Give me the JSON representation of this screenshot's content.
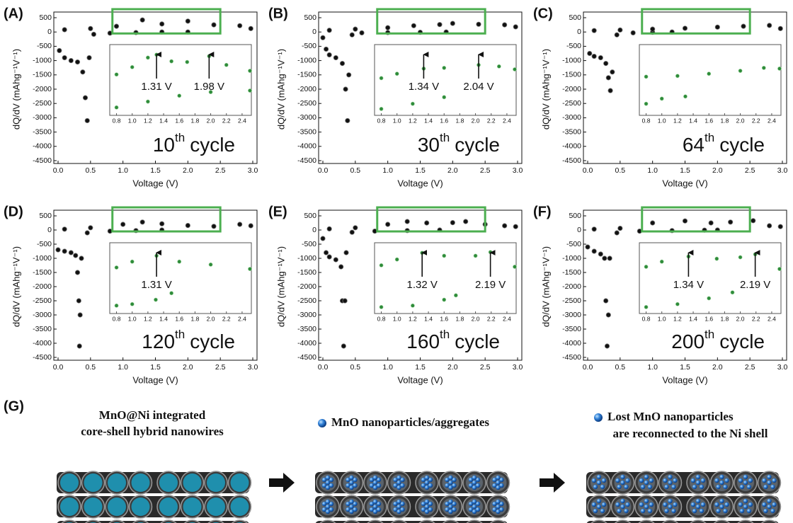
{
  "chart_data": [
    {
      "type": "scatter",
      "panel": "(A)",
      "xlabel": "Voltage (V)",
      "ylabel": "dQ/dV (mAhg⁻¹V⁻¹)",
      "cycle_number": "10",
      "cycle_suffix": "th",
      "cycle_word": "cycle",
      "xlim": [
        0,
        3
      ],
      "ylim": [
        -4500,
        500
      ],
      "xticks": [
        {
          "value": 0,
          "label": "0.0"
        },
        0.5,
        {
          "value": 1,
          "label": "1.0"
        },
        1.5,
        {
          "value": 2,
          "label": "2.0"
        },
        2.5,
        {
          "value": 3,
          "label": "3.0"
        }
      ],
      "yticks": [
        500,
        0,
        -500,
        -1000,
        -1500,
        -2000,
        -2500,
        -3000,
        -3500,
        -4000,
        -4500
      ],
      "series": [
        {
          "color": "#111111",
          "x": [
            0.02,
            0.1,
            0.2,
            0.3,
            0.38,
            0.42,
            0.45,
            0.48,
            0.55,
            0.8,
            1.2,
            1.6,
            2.0
          ],
          "values": [
            -650,
            -900,
            -1000,
            -1050,
            -1400,
            -2300,
            -3100,
            -900,
            -80,
            -40,
            -20,
            0,
            0
          ]
        },
        {
          "color": "#111111",
          "x": [
            0.1,
            0.5,
            0.9,
            1.3,
            1.6,
            2.0,
            2.4,
            2.8,
            2.97
          ],
          "values": [
            80,
            120,
            200,
            420,
            280,
            380,
            250,
            220,
            120
          ]
        }
      ],
      "inset": {
        "xlim": [
          0.75,
          2.5
        ],
        "ylim": [
          -250,
          600
        ],
        "xticks": [
          0.8,
          {
            "value": 1,
            "label": "1.0"
          },
          1.2,
          1.4,
          1.6,
          1.8,
          {
            "value": 2,
            "label": "2.0"
          },
          2.2,
          2.4
        ],
        "series": [
          {
            "color": "#2e8b3a",
            "x": [
              0.8,
              1.0,
              1.2,
              1.31,
              1.5,
              1.7,
              1.98,
              2.2,
              2.5
            ],
            "values": [
              250,
              350,
              480,
              520,
              430,
              420,
              500,
              380,
              300
            ]
          },
          {
            "color": "#2e8b3a",
            "x": [
              0.8,
              1.2,
              1.6,
              2.0,
              2.5
            ],
            "values": [
              -200,
              -120,
              -40,
              10,
              30
            ]
          }
        ],
        "peaks": [
          {
            "x": 1.31,
            "label": "1.31 V"
          },
          {
            "x": 1.98,
            "label": "1.98 V"
          }
        ]
      }
    },
    {
      "type": "scatter",
      "panel": "(B)",
      "xlabel": "Voltage (V)",
      "ylabel": "dQ/dV (mAhg⁻¹V⁻¹)",
      "cycle_number": "30",
      "cycle_suffix": "th",
      "cycle_word": "cycle",
      "xlim": [
        0,
        3
      ],
      "ylim": [
        -4500,
        500
      ],
      "xticks": [
        {
          "value": 0,
          "label": "0.0"
        },
        0.5,
        {
          "value": 1,
          "label": "1.0"
        },
        1.5,
        {
          "value": 2,
          "label": "2.0"
        },
        2.5,
        {
          "value": 3,
          "label": "3.0"
        }
      ],
      "yticks": [
        500,
        0,
        -500,
        -1000,
        -1500,
        -2000,
        -2500,
        -3000,
        -3500,
        -4000,
        -4500
      ],
      "series": [
        {
          "color": "#111111",
          "x": [
            0.0,
            0.05,
            0.1,
            0.2,
            0.3,
            0.35,
            0.38,
            0.4,
            0.45,
            0.6,
            1.0,
            1.5,
            1.9
          ],
          "values": [
            -200,
            -600,
            -800,
            -900,
            -1100,
            -2000,
            -3100,
            -1500,
            -100,
            -30,
            -20,
            -10,
            0
          ]
        },
        {
          "color": "#111111",
          "x": [
            0.1,
            0.5,
            1.0,
            1.4,
            1.8,
            2.0,
            2.4,
            2.8,
            2.97
          ],
          "values": [
            60,
            100,
            150,
            220,
            260,
            300,
            270,
            250,
            180
          ]
        }
      ],
      "inset": {
        "xlim": [
          0.75,
          2.5
        ],
        "ylim": [
          -250,
          600
        ],
        "xticks": [
          0.8,
          {
            "value": 1,
            "label": "1.0"
          },
          1.2,
          1.4,
          1.6,
          1.8,
          {
            "value": 2,
            "label": "2.0"
          },
          2.2,
          2.4
        ],
        "series": [
          {
            "color": "#2e8b3a",
            "x": [
              0.8,
              1.0,
              1.34,
              1.6,
              2.04,
              2.3,
              2.5
            ],
            "values": [
              200,
              260,
              330,
              340,
              380,
              360,
              320
            ]
          },
          {
            "color": "#2e8b3a",
            "x": [
              0.8,
              1.2,
              1.6
            ],
            "values": [
              -220,
              -150,
              -60
            ]
          }
        ],
        "peaks": [
          {
            "x": 1.34,
            "label": "1.34 V"
          },
          {
            "x": 2.04,
            "label": "2.04 V"
          }
        ]
      }
    },
    {
      "type": "scatter",
      "panel": "(C)",
      "xlabel": "Voltage (V)",
      "ylabel": "dQ/dV (mAhg⁻¹V⁻¹)",
      "cycle_number": "64",
      "cycle_suffix": "th",
      "cycle_word": "cycle",
      "xlim": [
        0,
        3
      ],
      "ylim": [
        -4500,
        500
      ],
      "xticks": [
        {
          "value": 0,
          "label": "0.0"
        },
        0.5,
        {
          "value": 1,
          "label": "1.0"
        },
        1.5,
        {
          "value": 2,
          "label": "2.0"
        },
        2.5,
        {
          "value": 3,
          "label": "3.0"
        }
      ],
      "yticks": [
        500,
        0,
        -500,
        -1000,
        -1500,
        -2000,
        -2500,
        -3000,
        -3500,
        -4000,
        -4500
      ],
      "series": [
        {
          "color": "#111111",
          "x": [
            0.03,
            0.1,
            0.2,
            0.28,
            0.32,
            0.35,
            0.38,
            0.45,
            0.7,
            1.0,
            1.3
          ],
          "values": [
            -750,
            -850,
            -900,
            -1100,
            -1600,
            -2050,
            -1400,
            -100,
            -30,
            -10,
            0
          ]
        },
        {
          "color": "#111111",
          "x": [
            0.1,
            0.5,
            1.0,
            1.5,
            2.0,
            2.4,
            2.8,
            2.97
          ],
          "values": [
            50,
            70,
            100,
            130,
            170,
            200,
            230,
            120
          ]
        }
      ],
      "inset": {
        "xlim": [
          0.75,
          2.5
        ],
        "ylim": [
          -250,
          600
        ],
        "xticks": [
          0.8,
          {
            "value": 1,
            "label": "1.0"
          },
          1.2,
          1.4,
          1.6,
          1.8,
          {
            "value": 2,
            "label": "2.0"
          },
          2.2,
          2.4
        ],
        "series": [
          {
            "color": "#2e8b3a",
            "x": [
              0.8,
              1.2,
              1.6,
              2.0,
              2.3,
              2.5
            ],
            "values": [
              220,
              230,
              260,
              300,
              340,
              330
            ]
          },
          {
            "color": "#2e8b3a",
            "x": [
              0.8,
              1.0,
              1.3
            ],
            "values": [
              -150,
              -80,
              -50
            ]
          }
        ],
        "peaks": []
      }
    },
    {
      "type": "scatter",
      "panel": "(D)",
      "xlabel": "Voltage (V)",
      "ylabel": "dQ/dV (mAhg⁻¹V⁻¹)",
      "cycle_number": "120",
      "cycle_suffix": "th",
      "cycle_word": "cycle",
      "xlim": [
        0,
        3
      ],
      "ylim": [
        -4500,
        500
      ],
      "xticks": [
        {
          "value": 0,
          "label": "0.0"
        },
        0.5,
        {
          "value": 1,
          "label": "1.0"
        },
        1.5,
        {
          "value": 2,
          "label": "2.0"
        },
        2.5,
        {
          "value": 3,
          "label": "3.0"
        }
      ],
      "yticks": [
        500,
        0,
        -500,
        -1000,
        -1500,
        -2000,
        -2500,
        -3000,
        -3500,
        -4000,
        -4500
      ],
      "series": [
        {
          "color": "#111111",
          "x": [
            0.0,
            0.1,
            0.2,
            0.27,
            0.3,
            0.32,
            0.33,
            0.34,
            0.36,
            0.45,
            0.8,
            1.2,
            1.6
          ],
          "values": [
            -700,
            -750,
            -800,
            -900,
            -1500,
            -2500,
            -4100,
            -3000,
            -1000,
            -100,
            -40,
            -20,
            0
          ]
        },
        {
          "color": "#111111",
          "x": [
            0.1,
            0.5,
            1.0,
            1.3,
            1.6,
            2.0,
            2.4,
            2.8,
            2.97
          ],
          "values": [
            30,
            80,
            200,
            280,
            220,
            160,
            130,
            200,
            150
          ]
        }
      ],
      "inset": {
        "xlim": [
          0.75,
          2.5
        ],
        "ylim": [
          -250,
          600
        ],
        "xticks": [
          0.8,
          {
            "value": 1,
            "label": "1.0"
          },
          1.2,
          1.4,
          1.6,
          1.8,
          {
            "value": 2,
            "label": "2.0"
          },
          2.2,
          2.4
        ],
        "series": [
          {
            "color": "#2e8b3a",
            "x": [
              0.8,
              1.0,
              1.31,
              1.6,
              2.0,
              2.5
            ],
            "values": [
              320,
              400,
              480,
              400,
              360,
              300
            ]
          },
          {
            "color": "#2e8b3a",
            "x": [
              0.8,
              1.0,
              1.3,
              1.5
            ],
            "values": [
              -200,
              -180,
              -120,
              -30
            ]
          }
        ],
        "peaks": [
          {
            "x": 1.31,
            "label": "1.31 V"
          }
        ]
      }
    },
    {
      "type": "scatter",
      "panel": "(E)",
      "xlabel": "Voltage (V)",
      "ylabel": "dQ/dV (mAhg⁻¹V⁻¹)",
      "cycle_number": "160",
      "cycle_suffix": "th",
      "cycle_word": "cycle",
      "xlim": [
        0,
        3
      ],
      "ylim": [
        -4500,
        500
      ],
      "xticks": [
        {
          "value": 0,
          "label": "0.0"
        },
        0.5,
        {
          "value": 1,
          "label": "1.0"
        },
        1.5,
        {
          "value": 2,
          "label": "2.0"
        },
        2.5,
        {
          "value": 3,
          "label": "3.0"
        }
      ],
      "yticks": [
        500,
        0,
        -500,
        -1000,
        -1500,
        -2000,
        -2500,
        -3000,
        -3500,
        -4000,
        -4500
      ],
      "series": [
        {
          "color": "#111111",
          "x": [
            0.0,
            0.05,
            0.1,
            0.2,
            0.28,
            0.3,
            0.32,
            0.34,
            0.36,
            0.45,
            0.8,
            1.3,
            1.8
          ],
          "values": [
            -300,
            -800,
            -950,
            -1050,
            -1300,
            -2500,
            -4100,
            -2500,
            -800,
            -80,
            -40,
            -20,
            0
          ]
        },
        {
          "color": "#111111",
          "x": [
            0.1,
            0.5,
            1.0,
            1.3,
            1.6,
            2.0,
            2.2,
            2.5,
            2.8,
            2.97
          ],
          "values": [
            40,
            80,
            200,
            300,
            250,
            260,
            300,
            200,
            150,
            120
          ]
        }
      ],
      "inset": {
        "xlim": [
          0.75,
          2.5
        ],
        "ylim": [
          -250,
          600
        ],
        "xticks": [
          0.8,
          {
            "value": 1,
            "label": "1.0"
          },
          1.2,
          1.4,
          1.6,
          1.8,
          {
            "value": 2,
            "label": "2.0"
          },
          2.2,
          2.4
        ],
        "series": [
          {
            "color": "#2e8b3a",
            "x": [
              0.8,
              1.0,
              1.32,
              1.6,
              2.0,
              2.19,
              2.5
            ],
            "values": [
              350,
              430,
              520,
              480,
              480,
              530,
              330
            ]
          },
          {
            "color": "#2e8b3a",
            "x": [
              0.8,
              1.2,
              1.6,
              1.75
            ],
            "values": [
              -220,
              -200,
              -120,
              -60
            ]
          }
        ],
        "peaks": [
          {
            "x": 1.32,
            "label": "1.32 V"
          },
          {
            "x": 2.19,
            "label": "2.19 V"
          }
        ]
      }
    },
    {
      "type": "scatter",
      "panel": "(F)",
      "xlabel": "Voltage (V)",
      "ylabel": "dQ/dV (mAhg⁻¹V⁻¹)",
      "cycle_number": "200",
      "cycle_suffix": "th",
      "cycle_word": "cycle",
      "xlim": [
        0,
        3
      ],
      "ylim": [
        -4500,
        500
      ],
      "xticks": [
        {
          "value": 0,
          "label": "0.0"
        },
        0.5,
        {
          "value": 1,
          "label": "1.0"
        },
        1.5,
        {
          "value": 2,
          "label": "2.0"
        },
        2.5,
        {
          "value": 3,
          "label": "3.0"
        }
      ],
      "yticks": [
        500,
        0,
        -500,
        -1000,
        -1500,
        -2000,
        -2500,
        -3000,
        -3500,
        -4000,
        -4500
      ],
      "series": [
        {
          "color": "#111111",
          "x": [
            0.0,
            0.1,
            0.2,
            0.26,
            0.28,
            0.3,
            0.32,
            0.34,
            0.45,
            0.8,
            1.3,
            1.8,
            2.0
          ],
          "values": [
            -600,
            -750,
            -850,
            -1000,
            -2500,
            -4100,
            -3000,
            -1000,
            -100,
            -40,
            -20,
            -5,
            0
          ]
        },
        {
          "color": "#111111",
          "x": [
            0.1,
            0.5,
            1.0,
            1.5,
            1.9,
            2.2,
            2.55,
            2.8,
            2.97
          ],
          "values": [
            30,
            60,
            250,
            320,
            250,
            280,
            330,
            150,
            120
          ]
        }
      ],
      "inset": {
        "xlim": [
          0.75,
          2.5
        ],
        "ylim": [
          -250,
          600
        ],
        "xticks": [
          0.8,
          {
            "value": 1,
            "label": "1.0"
          },
          1.2,
          1.4,
          1.6,
          1.8,
          {
            "value": 2,
            "label": "2.0"
          },
          2.2,
          2.4
        ],
        "series": [
          {
            "color": "#2e8b3a",
            "x": [
              0.8,
              1.0,
              1.34,
              1.7,
              2.0,
              2.19,
              2.5
            ],
            "values": [
              330,
              400,
              470,
              440,
              460,
              500,
              300
            ]
          },
          {
            "color": "#2e8b3a",
            "x": [
              0.8,
              1.2,
              1.6,
              1.9
            ],
            "values": [
              -220,
              -180,
              -100,
              -20
            ]
          }
        ],
        "peaks": [
          {
            "x": 1.34,
            "label": "1.34 V"
          },
          {
            "x": 2.19,
            "label": "2.19 V"
          }
        ]
      }
    }
  ],
  "schematic": {
    "panel": "(G)",
    "stage1": [
      "MnO@Ni integrated",
      "core-shell hybrid nanowires"
    ],
    "stage2": [
      "MnO nanoparticles/aggregates"
    ],
    "stage3": [
      "Lost MnO nanoparticles",
      "are reconnected to the Ni shell"
    ]
  }
}
